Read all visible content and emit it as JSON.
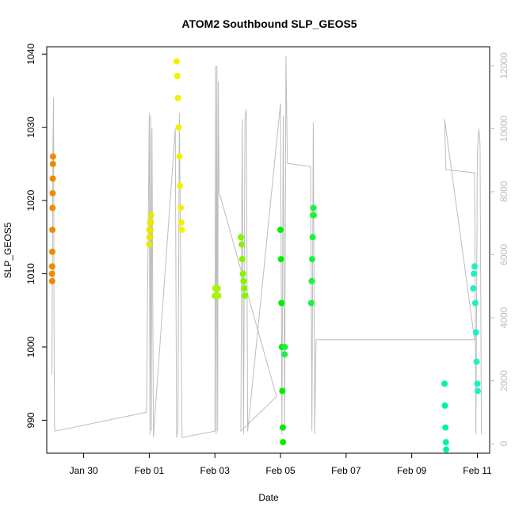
{
  "chart_data": {
    "type": "scatter",
    "title": "ATOM2 Southbound SLP_GEOS5",
    "xlabel": "Date",
    "ylabel": "SLP_GEOS5",
    "x_tick_labels": [
      "Jan 30",
      "Feb 01",
      "Feb 03",
      "Feb 05",
      "Feb 07",
      "Feb 09",
      "Feb 11"
    ],
    "y_ticks": [
      990,
      1000,
      1010,
      1020,
      1030,
      1040
    ],
    "y_right_ticks": [
      0,
      2000,
      4000,
      6000,
      8000,
      10000,
      12000
    ],
    "xlim": [
      "2016-01-28T21:00",
      "2016-02-11T09:00"
    ],
    "ylim": [
      985.5,
      1041
    ],
    "y_right_lim": [
      -300,
      12600
    ],
    "series_scatter": [
      {
        "color": "#f08a00",
        "points": [
          [
            "2016-01-29T00:50",
            1010
          ],
          [
            "2016-01-29T00:55",
            1009
          ],
          [
            "2016-01-29T01:00",
            1011
          ],
          [
            "2016-01-29T01:05",
            1013
          ],
          [
            "2016-01-29T01:10",
            1016
          ],
          [
            "2016-01-29T01:15",
            1019
          ],
          [
            "2016-01-29T01:20",
            1021
          ],
          [
            "2016-01-29T01:25",
            1023
          ],
          [
            "2016-01-29T01:30",
            1025
          ],
          [
            "2016-01-29T01:35",
            1026
          ]
        ]
      },
      {
        "color": "#e8e800",
        "points": [
          [
            "2016-02-01T00:00",
            1016
          ],
          [
            "2016-02-01T00:05",
            1014
          ],
          [
            "2016-02-01T00:10",
            1015
          ],
          [
            "2016-02-01T00:15",
            1016
          ],
          [
            "2016-02-01T00:20",
            1015
          ],
          [
            "2016-02-01T00:30",
            1016
          ],
          [
            "2016-02-01T00:40",
            1017
          ],
          [
            "2016-02-01T00:50",
            1017
          ],
          [
            "2016-02-01T01:00",
            1016
          ],
          [
            "2016-02-01T01:10",
            1017
          ],
          [
            "2016-02-01T01:20",
            1018
          ]
        ]
      },
      {
        "color": "#f2f200",
        "points": [
          [
            "2016-02-01T20:00",
            1039
          ],
          [
            "2016-02-01T20:30",
            1037
          ],
          [
            "2016-02-01T21:00",
            1034
          ],
          [
            "2016-02-01T21:30",
            1030
          ],
          [
            "2016-02-01T22:00",
            1026
          ],
          [
            "2016-02-01T22:30",
            1022
          ],
          [
            "2016-02-01T23:00",
            1019
          ],
          [
            "2016-02-01T23:30",
            1017
          ],
          [
            "2016-02-01T23:50",
            1016
          ]
        ]
      },
      {
        "color": "#a8f500",
        "points": [
          [
            "2016-02-03T00:00",
            1007
          ],
          [
            "2016-02-03T00:20",
            1008
          ],
          [
            "2016-02-03T00:40",
            1008
          ],
          [
            "2016-02-03T01:00",
            1007
          ],
          [
            "2016-02-03T01:30",
            1007
          ],
          [
            "2016-02-03T02:00",
            1008
          ],
          [
            "2016-02-03T02:30",
            1007
          ]
        ]
      },
      {
        "color": "#88f300",
        "points": [
          [
            "2016-02-03T19:00",
            1015
          ],
          [
            "2016-02-03T19:30",
            1014
          ],
          [
            "2016-02-03T20:00",
            1012
          ],
          [
            "2016-02-03T20:30",
            1010
          ],
          [
            "2016-02-03T21:00",
            1009
          ],
          [
            "2016-02-03T21:30",
            1008
          ],
          [
            "2016-02-03T22:00",
            1007
          ]
        ]
      },
      {
        "color": "#00f000",
        "points": [
          [
            "2016-02-05T00:00",
            1016
          ],
          [
            "2016-02-05T00:20",
            1012
          ],
          [
            "2016-02-05T00:40",
            1006
          ],
          [
            "2016-02-05T01:00",
            1000
          ],
          [
            "2016-02-05T01:20",
            994
          ],
          [
            "2016-02-05T01:40",
            989
          ],
          [
            "2016-02-05T01:50",
            987
          ]
        ]
      },
      {
        "color": "#22ee44",
        "points": [
          [
            "2016-02-05T03:00",
            999
          ],
          [
            "2016-02-05T03:10",
            1000
          ]
        ]
      },
      {
        "color": "#1ef040",
        "points": [
          [
            "2016-02-05T22:30",
            1006
          ],
          [
            "2016-02-05T22:50",
            1009
          ],
          [
            "2016-02-05T23:10",
            1012
          ],
          [
            "2016-02-05T23:30",
            1015
          ],
          [
            "2016-02-05T23:50",
            1018
          ],
          [
            "2016-02-06T00:10",
            1019
          ],
          [
            "2016-02-06T00:20",
            1018
          ]
        ]
      },
      {
        "color": "#00f5a0",
        "points": [
          [
            "2016-02-10T00:00",
            995
          ],
          [
            "2016-02-10T00:20",
            992
          ],
          [
            "2016-02-10T00:40",
            989
          ],
          [
            "2016-02-10T01:00",
            987
          ],
          [
            "2016-02-10T01:10",
            986
          ]
        ]
      },
      {
        "color": "#20f0c0",
        "points": [
          [
            "2016-02-10T21:00",
            1008
          ],
          [
            "2016-02-10T21:30",
            1010
          ],
          [
            "2016-02-10T22:00",
            1011
          ],
          [
            "2016-02-10T22:30",
            1006
          ],
          [
            "2016-02-10T23:00",
            1002
          ],
          [
            "2016-02-10T23:30",
            998
          ],
          [
            "2016-02-11T00:00",
            995
          ],
          [
            "2016-02-11T00:20",
            994
          ]
        ]
      }
    ],
    "altitude_line_right": {
      "color": "#bdbdbd",
      "points": [
        [
          "2016-01-29T00:50",
          2200
        ],
        [
          "2016-01-29T01:30",
          9400
        ],
        [
          "2016-01-29T02:00",
          11000
        ],
        [
          "2016-01-29T02:20",
          4000
        ],
        [
          "2016-01-29T02:40",
          500
        ],
        [
          "2016-01-29T03:00",
          400
        ],
        [
          "2016-01-31T22:00",
          1000
        ],
        [
          "2016-02-01T00:00",
          10500
        ],
        [
          "2016-02-01T00:30",
          300
        ],
        [
          "2016-02-01T01:00",
          10400
        ],
        [
          "2016-02-01T01:30",
          400
        ],
        [
          "2016-02-01T02:00",
          10000
        ],
        [
          "2016-02-01T03:00",
          200
        ],
        [
          "2016-02-01T19:00",
          10000
        ],
        [
          "2016-02-01T20:00",
          200
        ],
        [
          "2016-02-01T21:00",
          500
        ],
        [
          "2016-02-01T22:00",
          10500
        ],
        [
          "2016-02-02T00:00",
          200
        ],
        [
          "2016-02-03T00:00",
          400
        ],
        [
          "2016-02-03T00:30",
          12000
        ],
        [
          "2016-02-03T01:00",
          300
        ],
        [
          "2016-02-03T01:30",
          12000
        ],
        [
          "2016-02-03T02:00",
          400
        ],
        [
          "2016-02-03T02:30",
          11500
        ],
        [
          "2016-02-03T03:00",
          8000
        ],
        [
          "2016-02-04T21:00",
          1500
        ],
        [
          "2016-02-03T19:00",
          400
        ],
        [
          "2016-02-03T20:00",
          10300
        ],
        [
          "2016-02-03T21:00",
          300
        ],
        [
          "2016-02-03T22:00",
          10400
        ],
        [
          "2016-02-03T23:00",
          10600
        ],
        [
          "2016-02-04T00:00",
          400
        ],
        [
          "2016-02-05T00:00",
          10800
        ],
        [
          "2016-02-05T01:00",
          300
        ],
        [
          "2016-02-05T02:00",
          10400
        ],
        [
          "2016-02-05T03:00",
          400
        ],
        [
          "2016-02-05T04:00",
          12300
        ],
        [
          "2016-02-05T05:00",
          8900
        ],
        [
          "2016-02-05T22:00",
          8800
        ],
        [
          "2016-02-05T23:00",
          400
        ],
        [
          "2016-02-06T00:00",
          10200
        ],
        [
          "2016-02-06T01:00",
          300
        ],
        [
          "2016-02-06T02:00",
          3300
        ],
        [
          "2016-02-10T22:00",
          3300
        ],
        [
          "2016-02-10T00:00",
          10300
        ],
        [
          "2016-02-10T01:00",
          8700
        ],
        [
          "2016-02-10T22:00",
          8600
        ],
        [
          "2016-02-10T23:00",
          300
        ],
        [
          "2016-02-11T00:00",
          9200
        ],
        [
          "2016-02-11T01:00",
          10000
        ],
        [
          "2016-02-11T02:00",
          9500
        ],
        [
          "2016-02-11T03:00",
          300
        ]
      ]
    }
  }
}
